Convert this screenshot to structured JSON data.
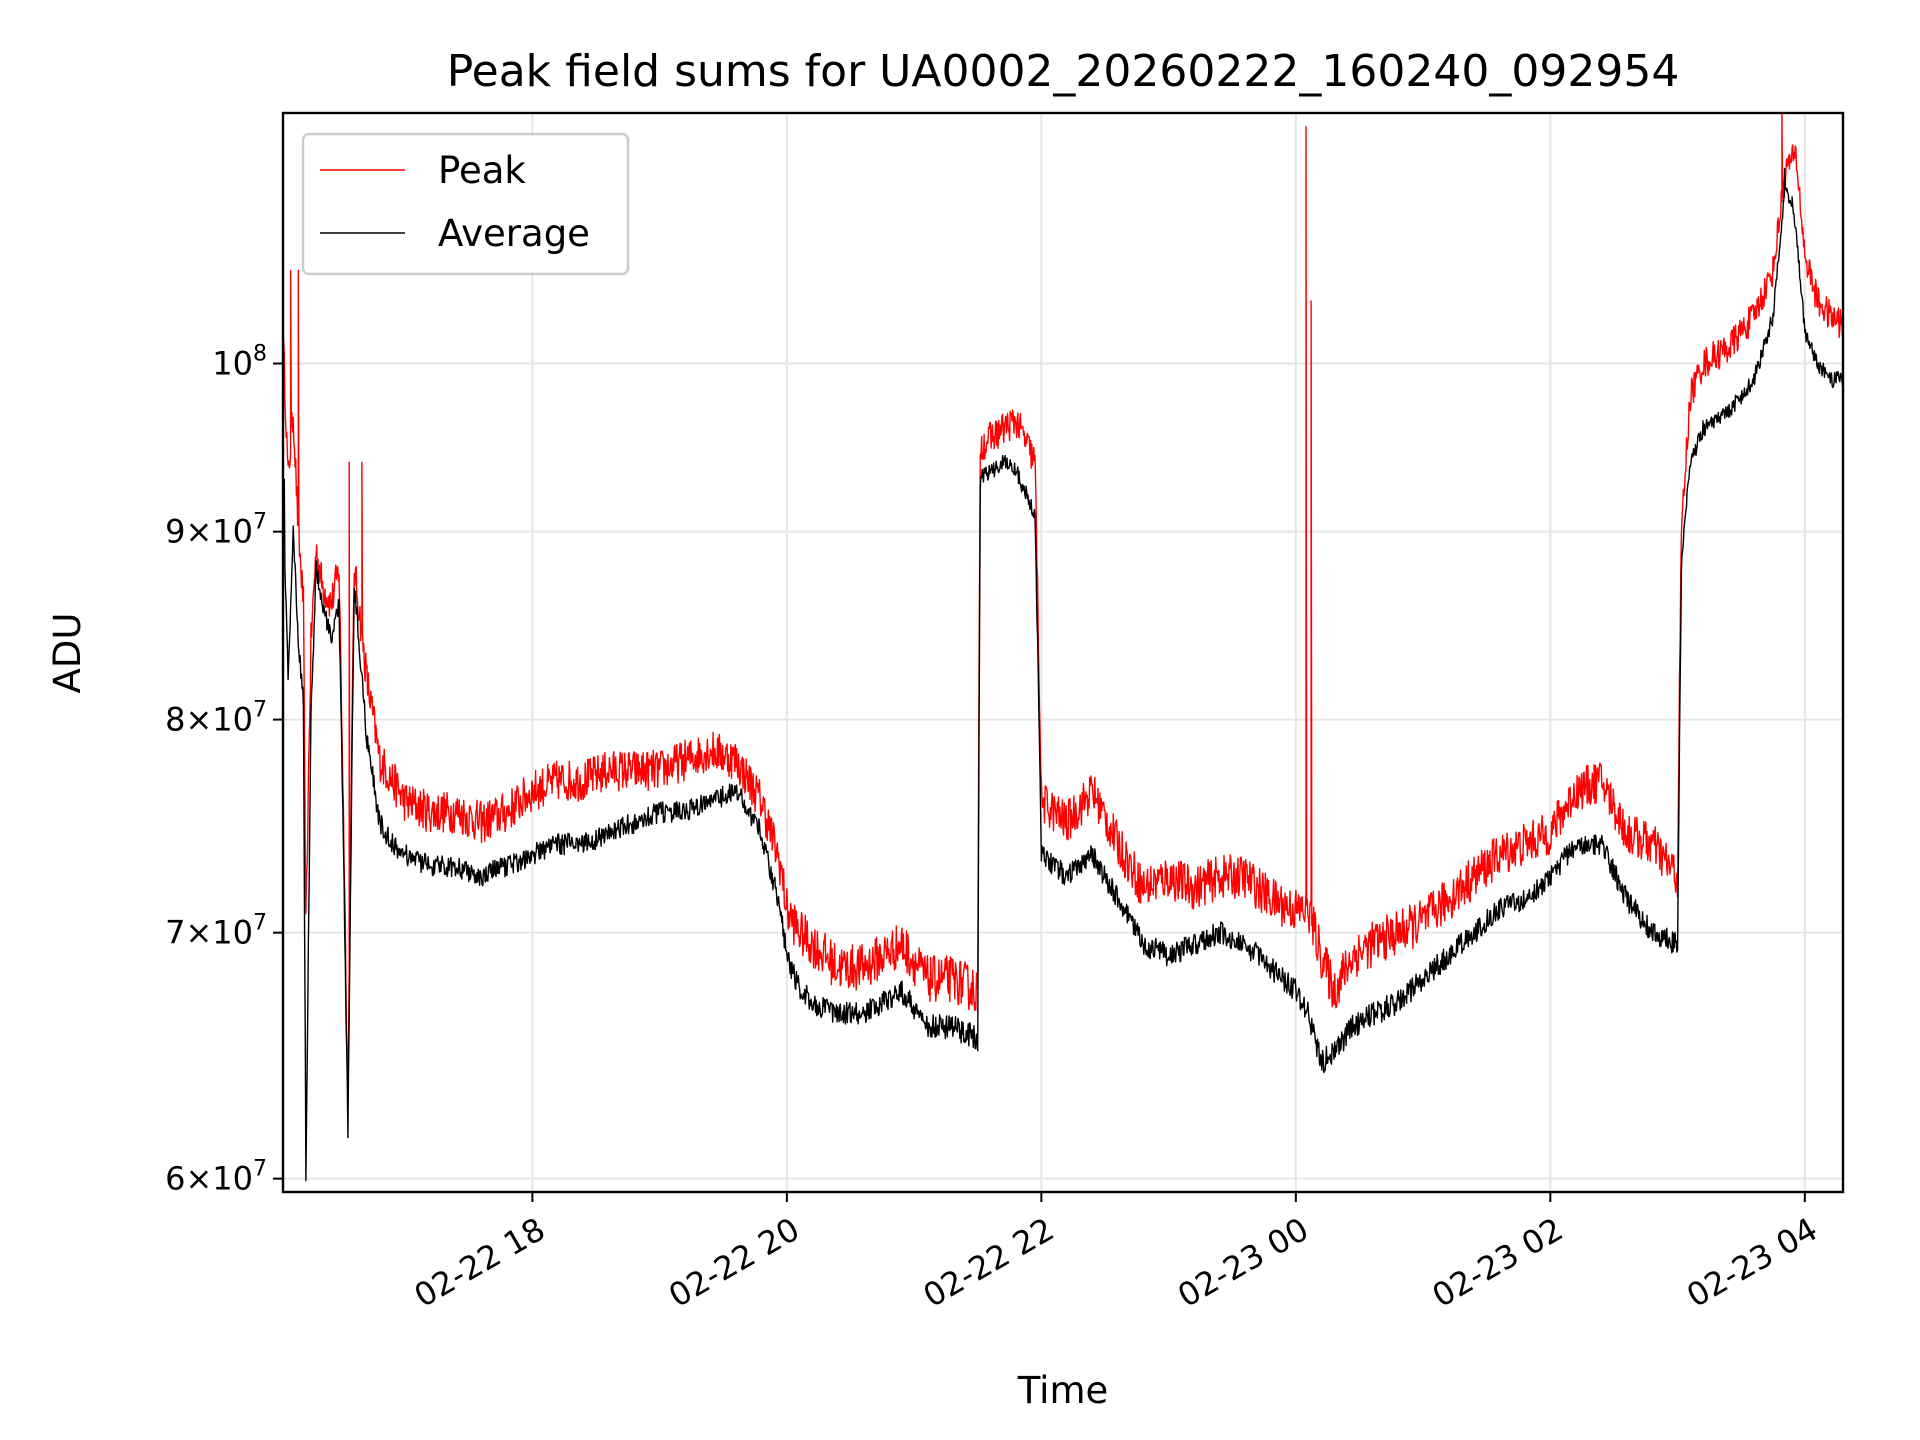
{
  "chart_data": {
    "type": "line",
    "title": "Peak field sums for UA0002_20260222_160240_092954",
    "xlabel": "Time",
    "ylabel": "ADU",
    "yscale": "log",
    "ylim": [
      59500000,
      117000000
    ],
    "xlim_hours": [
      16.04,
      28.3
    ],
    "grid": true,
    "legend_position": "upper-left",
    "x_ticks": [
      {
        "hour": 18,
        "label": "02-22 18"
      },
      {
        "hour": 20,
        "label": "02-22 20"
      },
      {
        "hour": 22,
        "label": "02-22 22"
      },
      {
        "hour": 24,
        "label": "02-23 00"
      },
      {
        "hour": 26,
        "label": "02-23 02"
      },
      {
        "hour": 28,
        "label": "02-23 04"
      }
    ],
    "y_ticks": [
      {
        "value": 60000000,
        "mantissa": "6",
        "base": "10",
        "exp": "7"
      },
      {
        "value": 70000000,
        "mantissa": "7",
        "base": "10",
        "exp": "7"
      },
      {
        "value": 80000000,
        "mantissa": "8",
        "base": "10",
        "exp": "7"
      },
      {
        "value": 90000000,
        "mantissa": "9",
        "base": "10",
        "exp": "7"
      },
      {
        "value": 100000000,
        "mantissa": "",
        "base": "10",
        "exp": "8"
      }
    ],
    "series": [
      {
        "name": "Peak",
        "color": "#ff0000",
        "noise": 1000000,
        "x": [
          16.04,
          16.08,
          16.12,
          16.16,
          16.2,
          16.22,
          16.26,
          16.3,
          16.35,
          16.42,
          16.48,
          16.55,
          16.6,
          16.65,
          16.7,
          16.8,
          16.9,
          17.0,
          17.2,
          17.4,
          17.6,
          17.8,
          18.0,
          18.2,
          18.4,
          18.6,
          18.8,
          19.0,
          19.2,
          19.4,
          19.6,
          19.8,
          19.95,
          20.0,
          20.1,
          20.2,
          20.4,
          20.6,
          20.9,
          21.1,
          21.3,
          21.5,
          21.52,
          21.7,
          21.8,
          21.95,
          22.0,
          22.2,
          22.4,
          22.6,
          22.8,
          23.0,
          23.2,
          23.4,
          23.6,
          23.8,
          24.0,
          24.1,
          24.2,
          24.3,
          24.45,
          24.6,
          24.8,
          25.0,
          25.2,
          25.4,
          25.6,
          25.8,
          26.0,
          26.2,
          26.4,
          26.6,
          26.8,
          27.0,
          27.03,
          27.1,
          27.2,
          27.4,
          27.6,
          27.75,
          27.85,
          27.93,
          28.0,
          28.1,
          28.2,
          28.3
        ],
        "y": [
          102000000,
          93000000,
          97000000,
          90000000,
          86000000,
          70000000,
          84000000,
          89000000,
          87000000,
          86000000,
          88000000,
          63000000,
          88000000,
          85000000,
          82000000,
          78000000,
          77000000,
          76000000,
          75500000,
          75500000,
          75000000,
          75500000,
          76500000,
          77000000,
          77000000,
          77500000,
          77500000,
          77500000,
          78000000,
          78500000,
          78000000,
          76000000,
          73000000,
          71000000,
          70000000,
          69500000,
          68500000,
          68500000,
          69500000,
          68000000,
          68000000,
          67500000,
          95000000,
          96000000,
          96500000,
          94000000,
          76000000,
          75000000,
          76500000,
          74000000,
          72000000,
          72500000,
          72000000,
          72500000,
          72500000,
          71500000,
          71000000,
          71000000,
          69000000,
          67500000,
          69000000,
          69500000,
          70000000,
          70500000,
          71500000,
          72500000,
          73500000,
          74000000,
          74500000,
          76500000,
          77000000,
          74500000,
          74000000,
          72500000,
          90000000,
          98000000,
          100000000,
          101000000,
          103000000,
          106000000,
          113000000,
          114000000,
          107000000,
          104000000,
          103000000,
          102500000
        ],
        "spikes": [
          [
            24.08,
            116000000
          ],
          [
            24.12,
            104000000
          ],
          [
            27.82,
            117000000
          ],
          [
            27.88,
            114000000
          ],
          [
            16.1,
            106000000
          ],
          [
            16.16,
            106000000
          ],
          [
            16.56,
            94000000
          ],
          [
            16.66,
            94000000
          ]
        ]
      },
      {
        "name": "Average",
        "color": "#000000",
        "noise": 500000,
        "x": [
          16.04,
          16.08,
          16.12,
          16.16,
          16.2,
          16.22,
          16.26,
          16.3,
          16.35,
          16.42,
          16.48,
          16.55,
          16.6,
          16.65,
          16.7,
          16.8,
          16.9,
          17.0,
          17.2,
          17.4,
          17.6,
          17.8,
          18.0,
          18.2,
          18.4,
          18.6,
          18.8,
          19.0,
          19.2,
          19.4,
          19.6,
          19.8,
          19.95,
          20.0,
          20.1,
          20.2,
          20.4,
          20.6,
          20.9,
          21.1,
          21.3,
          21.5,
          21.52,
          21.7,
          21.8,
          21.95,
          22.0,
          22.2,
          22.4,
          22.6,
          22.8,
          23.0,
          23.2,
          23.4,
          23.6,
          23.8,
          24.0,
          24.1,
          24.2,
          24.3,
          24.45,
          24.6,
          24.8,
          25.0,
          25.2,
          25.4,
          25.6,
          25.8,
          26.0,
          26.2,
          26.4,
          26.6,
          26.8,
          27.0,
          27.03,
          27.1,
          27.2,
          27.4,
          27.6,
          27.75,
          27.85,
          27.93,
          28.0,
          28.1,
          28.2,
          28.3
        ],
        "y": [
          92000000,
          82000000,
          90000000,
          84000000,
          81000000,
          59500000,
          80000000,
          88000000,
          86000000,
          84000000,
          86000000,
          61500000,
          87000000,
          83000000,
          79000000,
          75000000,
          74000000,
          73500000,
          73000000,
          73000000,
          72500000,
          73000000,
          73500000,
          74000000,
          74000000,
          74500000,
          75000000,
          75500000,
          75500000,
          76000000,
          76500000,
          74500000,
          71000000,
          69000000,
          67500000,
          67000000,
          66500000,
          66500000,
          67500000,
          66000000,
          66000000,
          65500000,
          93000000,
          94000000,
          93500000,
          91000000,
          73500000,
          72500000,
          73500000,
          71500000,
          69500000,
          69000000,
          69500000,
          70000000,
          69500000,
          68500000,
          67500000,
          66500000,
          64500000,
          65000000,
          66000000,
          66500000,
          67000000,
          68000000,
          69000000,
          70000000,
          71000000,
          71500000,
          72500000,
          74000000,
          74000000,
          71500000,
          70000000,
          69500000,
          88000000,
          94000000,
          96000000,
          97000000,
          99000000,
          103000000,
          112000000,
          109000000,
          102000000,
          100000000,
          99000000,
          99000000
        ],
        "spikes": [
          [
            27.84,
            113000000
          ],
          [
            27.9,
            111000000
          ],
          [
            16.05,
            93000000
          ]
        ]
      }
    ]
  }
}
